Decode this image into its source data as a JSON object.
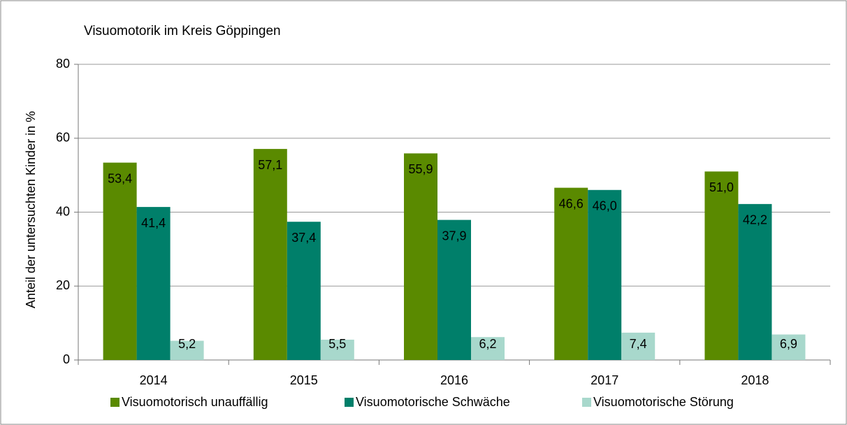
{
  "chart_data": {
    "type": "bar",
    "title": "Visuomotorik im Kreis Göppingen",
    "y_label": "Anteil der untersuchten Kinder in %",
    "categories": [
      "2014",
      "2015",
      "2016",
      "2017",
      "2018"
    ],
    "series": [
      {
        "name": "Visuomotorisch unauffällig",
        "color": "#5a8a00",
        "values": [
          53.4,
          57.1,
          55.9,
          46.6,
          51.0
        ],
        "value_labels": [
          "53,4",
          "57,1",
          "55,9",
          "46,6",
          "51,0"
        ]
      },
      {
        "name": "Visuomotorische Schwäche",
        "color": "#007f6a",
        "values": [
          41.4,
          37.4,
          37.9,
          46.0,
          42.2
        ],
        "value_labels": [
          "41,4",
          "37,4",
          "37,9",
          "46,0",
          "42,2"
        ]
      },
      {
        "name": "Visuomotorische Störung",
        "color": "#a8d8cc",
        "values": [
          5.2,
          5.5,
          6.2,
          7.4,
          6.9
        ],
        "value_labels": [
          "5,2",
          "5,5",
          "6,2",
          "7,4",
          "6,9"
        ]
      }
    ],
    "ylim": [
      0,
      80
    ],
    "yticks": [
      0,
      20,
      40,
      60,
      80
    ],
    "grid": true,
    "legend": "bottom"
  }
}
